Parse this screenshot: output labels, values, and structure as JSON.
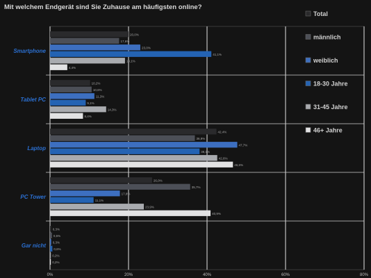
{
  "chart_data": {
    "type": "bar",
    "orientation": "horizontal",
    "title": "Mit welchem Endgerät sind Sie Zuhause am häufigsten online?",
    "categories": [
      "Smartphone",
      "Tablet PC",
      "Laptop",
      "PC Tower",
      "Gar nicht"
    ],
    "series": [
      {
        "name": "Total",
        "color": "#2a2a2c",
        "values": [
          20.0,
          10.2,
          42.4,
          26.0,
          0.3
        ],
        "labels": [
          "20,0%",
          "10,2%",
          "42,4%",
          "26,0%",
          "0,3%"
        ]
      },
      {
        "name": "männlich",
        "color": "#4c4f57",
        "values": [
          17.6,
          10.6,
          36.9,
          35.7,
          0.5
        ],
        "labels": [
          "17,6%",
          "10,6%",
          "36,9%",
          "35,7%",
          "0,5%"
        ]
      },
      {
        "name": "weiblich",
        "color": "#3d6fc0",
        "values": [
          23.0,
          11.3,
          47.7,
          17.8,
          0.3
        ],
        "labels": [
          "23,0%",
          "11,3%",
          "47,7%",
          "17,8%",
          "0,3%"
        ]
      },
      {
        "name": "18-30 Jahre",
        "color": "#2463b3",
        "values": [
          41.1,
          9.1,
          38.1,
          11.1,
          0.6
        ],
        "labels": [
          "41,1%",
          "9,1%",
          "38,1%",
          "11,1%",
          "0,6%"
        ]
      },
      {
        "name": "31-45 Jahre",
        "color": "#a9abaf",
        "values": [
          19.1,
          14.3,
          42.6,
          23.9,
          0.2
        ],
        "labels": [
          "19,1%",
          "14,3%",
          "42,6%",
          "23,9%",
          "0,2%"
        ]
      },
      {
        "name": "46+ Jahre",
        "color": "#e2e2e3",
        "values": [
          4.4,
          8.4,
          46.6,
          40.9,
          0.2
        ],
        "labels": [
          "4,4%",
          "8,4%",
          "46,6%",
          "40,9%",
          "0,2%"
        ]
      }
    ],
    "xlim": [
      0,
      80
    ],
    "xticks": [
      "0%",
      "20%",
      "40%",
      "60%",
      "80%"
    ],
    "grid": true,
    "legend_position": "right"
  }
}
